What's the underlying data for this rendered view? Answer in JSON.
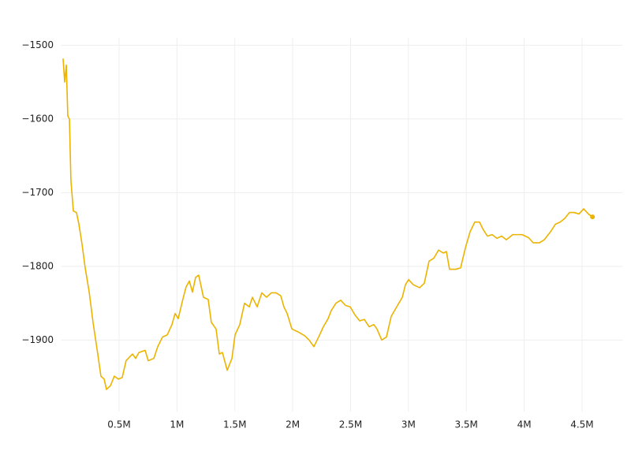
{
  "chart_data": {
    "type": "line",
    "color": "#ecb300",
    "grid": true,
    "end_marker": true,
    "xlim": [
      0,
      4850000
    ],
    "ylim": [
      -1997,
      -1490
    ],
    "xticks": [
      {
        "value": 500000,
        "label": "0.5M"
      },
      {
        "value": 1000000,
        "label": "1M"
      },
      {
        "value": 1500000,
        "label": "1.5M"
      },
      {
        "value": 2000000,
        "label": "2M"
      },
      {
        "value": 2500000,
        "label": "2.5M"
      },
      {
        "value": 3000000,
        "label": "3M"
      },
      {
        "value": 3500000,
        "label": "3.5M"
      },
      {
        "value": 4000000,
        "label": "4M"
      },
      {
        "value": 4500000,
        "label": "4.5M"
      }
    ],
    "yticks": [
      {
        "value": -1500,
        "label": "−1500"
      },
      {
        "value": -1600,
        "label": "−1600"
      },
      {
        "value": -1700,
        "label": "−1700"
      },
      {
        "value": -1800,
        "label": "−1800"
      },
      {
        "value": -1900,
        "label": "−1900"
      }
    ],
    "x": [
      16000,
      30000,
      44000,
      57000,
      71000,
      84000,
      105000,
      132000,
      153000,
      180000,
      207000,
      241000,
      275000,
      316000,
      343000,
      371000,
      391000,
      425000,
      459000,
      493000,
      527000,
      561000,
      616000,
      643000,
      671000,
      725000,
      752000,
      800000,
      834000,
      875000,
      916000,
      957000,
      984000,
      1011000,
      1052000,
      1079000,
      1107000,
      1134000,
      1161000,
      1188000,
      1229000,
      1270000,
      1297000,
      1338000,
      1366000,
      1393000,
      1434000,
      1475000,
      1502000,
      1543000,
      1584000,
      1625000,
      1652000,
      1693000,
      1733000,
      1774000,
      1815000,
      1856000,
      1897000,
      1924000,
      1952000,
      1993000,
      2047000,
      2102000,
      2142000,
      2183000,
      2224000,
      2265000,
      2306000,
      2333000,
      2374000,
      2415000,
      2456000,
      2497000,
      2538000,
      2579000,
      2619000,
      2660000,
      2701000,
      2728000,
      2769000,
      2810000,
      2851000,
      2906000,
      2947000,
      2974000,
      3001000,
      3042000,
      3097000,
      3137000,
      3178000,
      3219000,
      3260000,
      3301000,
      3328000,
      3355000,
      3410000,
      3451000,
      3492000,
      3533000,
      3573000,
      3614000,
      3642000,
      3682000,
      3723000,
      3764000,
      3805000,
      3846000,
      3901000,
      3941000,
      3982000,
      4037000,
      4078000,
      4132000,
      4173000,
      4228000,
      4269000,
      4310000,
      4351000,
      4391000,
      4432000,
      4473000,
      4514000,
      4555000,
      4590000
    ],
    "values": [
      -1518,
      -1550,
      -1527,
      -1596,
      -1600,
      -1684,
      -1725,
      -1727,
      -1743,
      -1770,
      -1802,
      -1834,
      -1876,
      -1919,
      -1949,
      -1953,
      -1967,
      -1962,
      -1949,
      -1953,
      -1951,
      -1928,
      -1919,
      -1925,
      -1917,
      -1914,
      -1928,
      -1925,
      -1909,
      -1896,
      -1893,
      -1879,
      -1864,
      -1871,
      -1844,
      -1828,
      -1820,
      -1835,
      -1815,
      -1812,
      -1842,
      -1845,
      -1876,
      -1885,
      -1919,
      -1917,
      -1941,
      -1925,
      -1893,
      -1879,
      -1850,
      -1855,
      -1842,
      -1855,
      -1836,
      -1842,
      -1836,
      -1836,
      -1840,
      -1855,
      -1864,
      -1885,
      -1889,
      -1894,
      -1900,
      -1909,
      -1896,
      -1882,
      -1871,
      -1860,
      -1850,
      -1846,
      -1853,
      -1855,
      -1866,
      -1874,
      -1872,
      -1882,
      -1879,
      -1885,
      -1900,
      -1896,
      -1868,
      -1853,
      -1842,
      -1825,
      -1818,
      -1825,
      -1829,
      -1823,
      -1793,
      -1789,
      -1778,
      -1782,
      -1780,
      -1804,
      -1804,
      -1802,
      -1775,
      -1753,
      -1740,
      -1740,
      -1749,
      -1759,
      -1757,
      -1762,
      -1759,
      -1764,
      -1757,
      -1757,
      -1757,
      -1761,
      -1768,
      -1768,
      -1764,
      -1753,
      -1743,
      -1740,
      -1735,
      -1727,
      -1727,
      -1729,
      -1722,
      -1729,
      -1733
    ]
  }
}
